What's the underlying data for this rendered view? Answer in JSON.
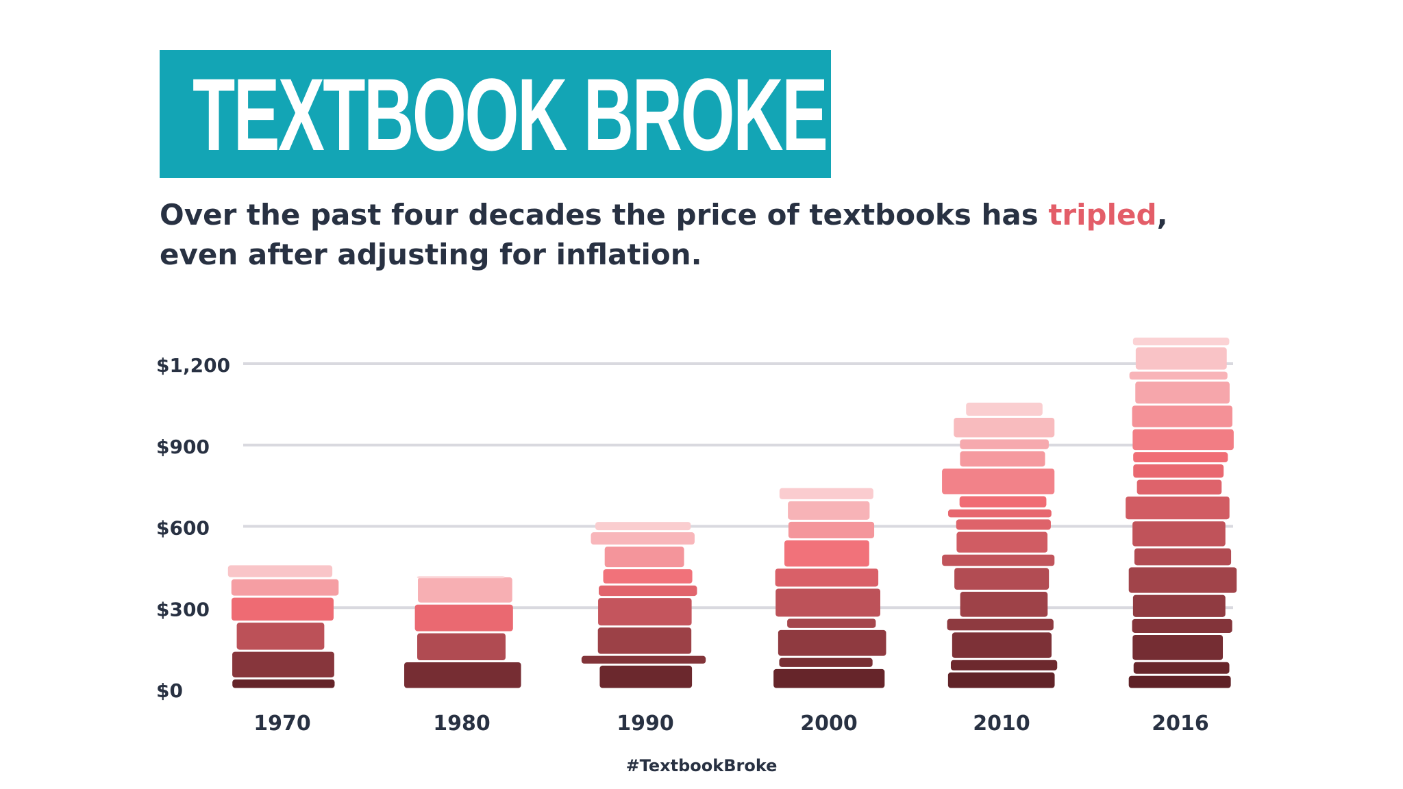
{
  "title": "TEXTBOOK BROKE",
  "subtitle": {
    "part1": "Over the past four decades the price of textbooks has ",
    "highlight": "tripled",
    "part2": ",",
    "line2": "even after adjusting for inflation."
  },
  "hashtag": "#TextbookBroke",
  "colors": {
    "banner": "#13a5b5",
    "text": "#283142",
    "highlight": "#e35d68",
    "grid": "#d9d9df",
    "bar_dark": "#5a1f24",
    "bar_light": "#fbd6d8"
  },
  "chart_data": {
    "type": "bar",
    "categories": [
      "1970",
      "1980",
      "1990",
      "2000",
      "2010",
      "2016"
    ],
    "values": [
      460,
      420,
      620,
      745,
      1060,
      1300
    ],
    "ylim": [
      0,
      1200
    ],
    "yticks": [
      0,
      300,
      600,
      900,
      1200
    ],
    "ytick_labels": [
      "$0",
      "$300",
      "$600",
      "$900",
      "$1,200"
    ],
    "grid": true
  }
}
